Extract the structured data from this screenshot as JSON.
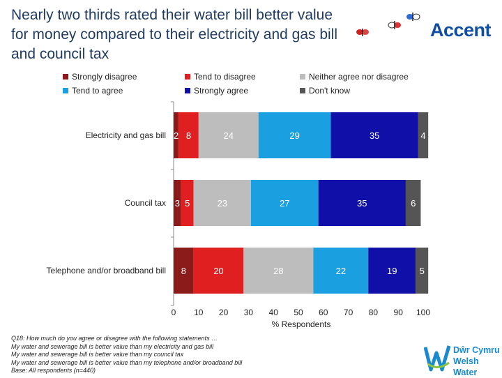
{
  "title": "Nearly two thirds rated their water bill better value for money compared to their electricity and gas bill and council tax",
  "brand": {
    "name": "Accent",
    "color": "#0f4ea0"
  },
  "client": {
    "line1": "Dŵr Cymru",
    "line2": "Welsh Water",
    "color": "#1a8ad0"
  },
  "legend_rows": [
    [
      {
        "label": "Strongly disagree",
        "color": "#8b1a1a"
      },
      {
        "label": "Tend to disagree",
        "color": "#e02020"
      },
      {
        "label": "Neither agree nor disagree",
        "color": "#bdbdbd"
      }
    ],
    [
      {
        "label": "Tend to agree",
        "color": "#1aa0e0"
      },
      {
        "label": "Strongly agree",
        "color": "#1010a8"
      },
      {
        "label": "Don't know",
        "color": "#555555"
      }
    ]
  ],
  "footnote": [
    "Q18: How much do you agree or disagree with the following statements …",
    "My water and sewerage bill is better value than my electricity and gas bill",
    "My water and sewerage bill is better value than my council tax",
    "My water and sewerage bill is better value than my telephone and/or broadband bill",
    "Base: All respondents (n=440)"
  ],
  "chart_data": {
    "type": "bar",
    "orientation": "horizontal",
    "stacked": true,
    "categories": [
      "Electricity and gas bill",
      "Council tax",
      "Telephone and/or broadband bill"
    ],
    "series": [
      {
        "name": "Strongly disagree",
        "color": "#8b1a1a",
        "values": [
          2,
          3,
          8
        ]
      },
      {
        "name": "Tend to disagree",
        "color": "#e02020",
        "values": [
          8,
          5,
          20
        ]
      },
      {
        "name": "Neither agree nor disagree",
        "color": "#bdbdbd",
        "values": [
          24,
          23,
          28
        ]
      },
      {
        "name": "Tend to agree",
        "color": "#1aa0e0",
        "values": [
          29,
          27,
          22
        ]
      },
      {
        "name": "Strongly agree",
        "color": "#1010a8",
        "values": [
          35,
          35,
          19
        ]
      },
      {
        "name": "Don't know",
        "color": "#555555",
        "values": [
          4,
          6,
          5
        ]
      }
    ],
    "xlabel": "% Respondents",
    "xlim": [
      0,
      100
    ],
    "xticks": [
      0,
      10,
      20,
      30,
      40,
      50,
      60,
      70,
      80,
      90,
      100
    ]
  }
}
